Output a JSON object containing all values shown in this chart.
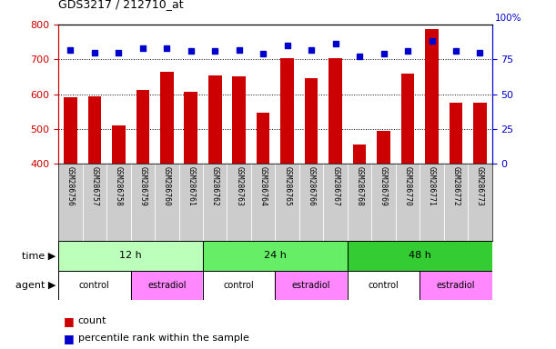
{
  "title": "GDS3217 / 212710_at",
  "samples": [
    "GSM286756",
    "GSM286757",
    "GSM286758",
    "GSM286759",
    "GSM286760",
    "GSM286761",
    "GSM286762",
    "GSM286763",
    "GSM286764",
    "GSM286765",
    "GSM286766",
    "GSM286767",
    "GSM286768",
    "GSM286769",
    "GSM286770",
    "GSM286771",
    "GSM286772",
    "GSM286773"
  ],
  "counts": [
    592,
    595,
    510,
    612,
    665,
    607,
    655,
    651,
    547,
    703,
    645,
    703,
    457,
    494,
    660,
    787,
    575,
    576
  ],
  "percentile_ranks": [
    82,
    80,
    80,
    83,
    83,
    81,
    81,
    82,
    79,
    85,
    82,
    86,
    77,
    79,
    81,
    88,
    81,
    80
  ],
  "ylim_left": [
    400,
    800
  ],
  "ylim_right": [
    0,
    100
  ],
  "bar_color": "#CC0000",
  "dot_color": "#0000CC",
  "tick_label_color": "#CC0000",
  "right_tick_color": "#0000CC",
  "time_groups": [
    {
      "label": "12 h",
      "start": 0,
      "end": 6,
      "color": "#BBFFBB"
    },
    {
      "label": "24 h",
      "start": 6,
      "end": 12,
      "color": "#66EE66"
    },
    {
      "label": "48 h",
      "start": 12,
      "end": 18,
      "color": "#33CC33"
    }
  ],
  "agent_groups": [
    {
      "label": "control",
      "start": 0,
      "end": 3,
      "color": "#FFFFFF"
    },
    {
      "label": "estradiol",
      "start": 3,
      "end": 6,
      "color": "#FF88FF"
    },
    {
      "label": "control",
      "start": 6,
      "end": 9,
      "color": "#FFFFFF"
    },
    {
      "label": "estradiol",
      "start": 9,
      "end": 12,
      "color": "#FF88FF"
    },
    {
      "label": "control",
      "start": 12,
      "end": 15,
      "color": "#FFFFFF"
    },
    {
      "label": "estradiol",
      "start": 15,
      "end": 18,
      "color": "#FF88FF"
    }
  ],
  "legend_count_label": "count",
  "legend_pct_label": "percentile rank within the sample",
  "time_label": "time",
  "agent_label": "agent",
  "bar_width": 0.55,
  "label_col_color": "#CCCCCC",
  "right_axis_top_label": "100%"
}
